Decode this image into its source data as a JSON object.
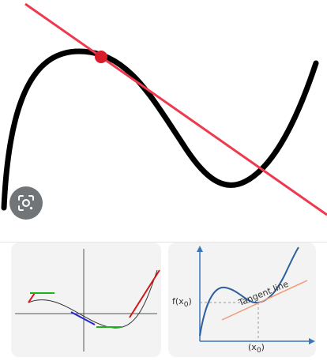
{
  "main_image": {
    "alt": "Cubic curve with tangent line at local maximum",
    "colors": {
      "curve": "#000000",
      "tangent": "#ee3a4e",
      "point": "#d81c2c"
    }
  },
  "lens_button": {
    "icon": "lens-icon"
  },
  "thumbnails": [
    {
      "alt": "Parabola with tangent segments",
      "colors": {
        "left": "#d01818",
        "right": "#d01818",
        "top": "#1fb21f",
        "mid": "#2626c8"
      }
    },
    {
      "alt": "Tangent line diagram",
      "labels": {
        "fx": "f(x",
        "fx_sub": "0",
        "fx_close": ")",
        "x0": "(x",
        "x0_sub": "0",
        "x0_close": ")",
        "tangent": "Tangent line"
      },
      "colors": {
        "axis": "#3a76b8",
        "curve": "#2e5f9e",
        "tangent": "#f29a76"
      }
    }
  ]
}
